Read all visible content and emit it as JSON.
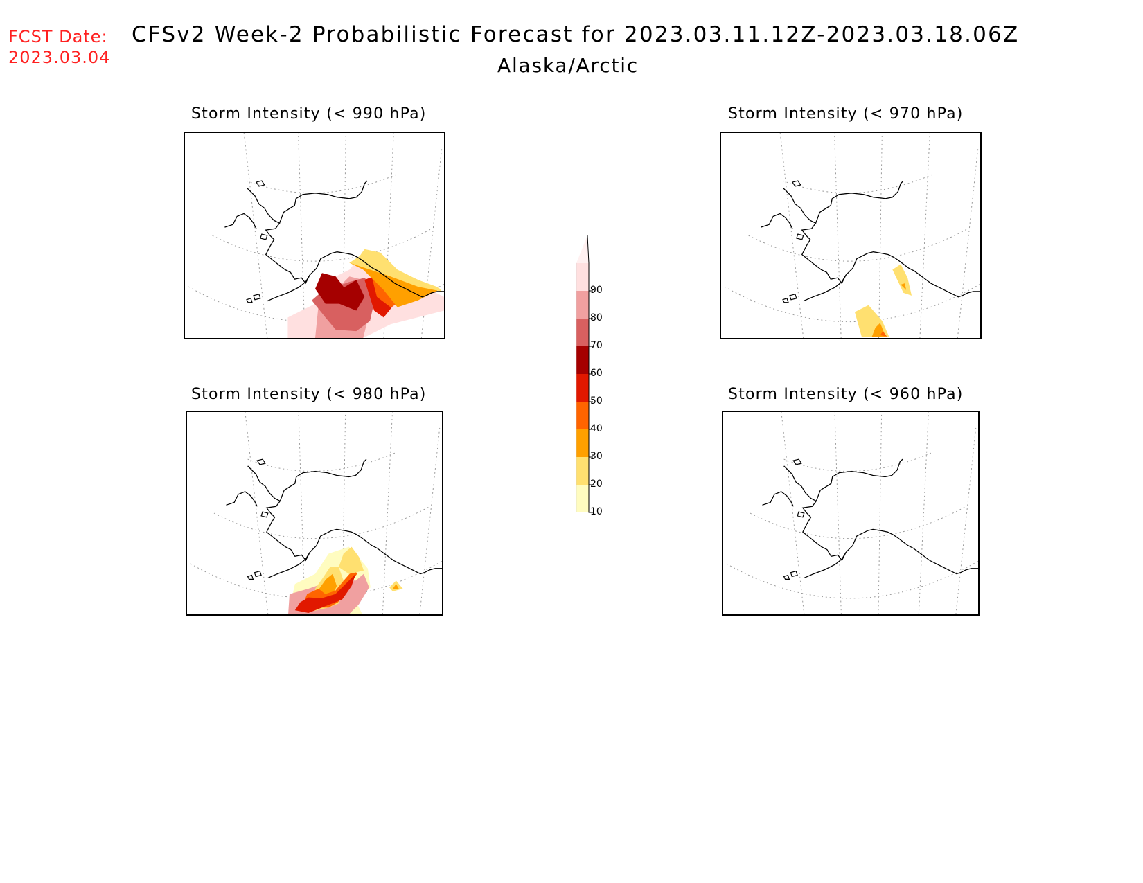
{
  "header": {
    "fcst_label": "FCST Date:",
    "fcst_date": "2023.03.04",
    "title": "CFSv2 Week-2 Probabilistic Forecast for 2023.03.11.12Z-2023.03.18.06Z",
    "region": "Alaska/Arctic"
  },
  "colors": {
    "c10": "#fffcc0",
    "c20": "#ffe070",
    "c30": "#ffa000",
    "c40": "#ff6400",
    "c50": "#e11800",
    "c60": "#a50000",
    "c70": "#d86060",
    "c80": "#f0a0a0",
    "c90": "#ffe0e0",
    "title_red": "#ff2020"
  },
  "colorbar": {
    "labels": [
      "90",
      "80",
      "70",
      "60",
      "50",
      "40",
      "30",
      "20",
      "10"
    ]
  },
  "panels": [
    {
      "id": "p990",
      "title": "Storm Intensity (< 990 hPa)",
      "threshold_hpa": 990,
      "max_probability": 90
    },
    {
      "id": "p970",
      "title": "Storm Intensity (< 970 hPa)",
      "threshold_hpa": 970,
      "max_probability": 30
    },
    {
      "id": "p980",
      "title": "Storm Intensity (< 980 hPa)",
      "threshold_hpa": 980,
      "max_probability": 80
    },
    {
      "id": "p960",
      "title": "Storm Intensity (< 960 hPa)",
      "threshold_hpa": 960,
      "max_probability": 0
    }
  ]
}
